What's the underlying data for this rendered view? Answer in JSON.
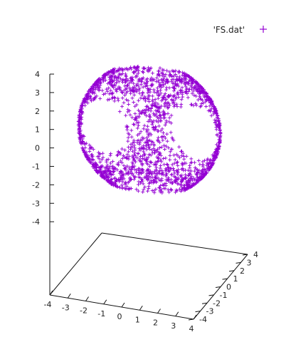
{
  "chart_data": {
    "type": "scatter",
    "title": "",
    "series": [
      {
        "name": "'FS.dat'",
        "marker": "+",
        "color": "#9400d3"
      }
    ],
    "legend_position": "top-right",
    "z_axis": {
      "ticks": [
        "4",
        "3",
        "2",
        "1",
        "0",
        "-1",
        "-2",
        "-3",
        "-4"
      ],
      "range": [
        -4,
        4
      ]
    },
    "x_axis": {
      "ticks": [
        "-4",
        "-3",
        "-2",
        "-1",
        "0",
        "1",
        "2",
        "3",
        "4"
      ],
      "range": [
        -4,
        4
      ]
    },
    "y_axis": {
      "ticks": [
        "-4",
        "-3",
        "-2",
        "-1",
        "0",
        "1",
        "2",
        "3",
        "4"
      ],
      "range": [
        -4,
        4
      ]
    },
    "grid": false,
    "surface_points": 1
  }
}
